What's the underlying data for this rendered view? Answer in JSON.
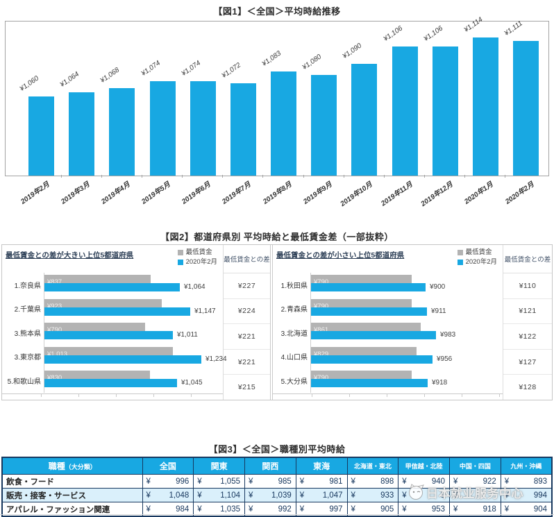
{
  "colors": {
    "accent_blue": "#18a8e2",
    "bar_gray": "#b3b3b3",
    "table_border_navy": "#17375e",
    "table_alt_row": "#daf0fb",
    "panel_border": "#c6c6c6"
  },
  "figure2_title": "【図2】都道府県別 平均時給と最低賃金差（一部抜粋）",
  "watermark": {
    "text": "日本就业服务中心",
    "logo": "cat-face-icon"
  },
  "chart_data": [
    {
      "id": "fig1",
      "type": "bar",
      "title": "【図1】＜全国＞平均時給推移",
      "categories": [
        "2019年2月",
        "2019年3月",
        "2019年4月",
        "2019年5月",
        "2019年6月",
        "2019年7月",
        "2019年8月",
        "2019年9月",
        "2019年10月",
        "2019年11月",
        "2019年12月",
        "2020年1月",
        "2020年2月"
      ],
      "values": [
        1060,
        1064,
        1068,
        1074,
        1074,
        1072,
        1083,
        1080,
        1090,
        1106,
        1106,
        1114,
        1111
      ],
      "data_labels": [
        "¥1,060",
        "¥1,064",
        "¥1,068",
        "¥1,074",
        "¥1,074",
        "¥1,072",
        "¥1,083",
        "¥1,080",
        "¥1,090",
        "¥1,106",
        "¥1,106",
        "¥1,114",
        "¥1,111"
      ],
      "bar_color": "#18a8e2",
      "xlabel": "",
      "ylabel": "",
      "ylim": [
        990,
        1140
      ],
      "grid": false,
      "legend": "none",
      "label_style": "rotated-italic"
    },
    {
      "id": "fig2_left",
      "type": "bar",
      "orientation": "horizontal",
      "title": "最低賃金との差が大きい上位5都道府県",
      "categories": [
        "1.奈良県",
        "2.千葉県",
        "3.熊本県",
        "3.東京都",
        "5.和歌山県"
      ],
      "series": [
        {
          "name": "最低賃金",
          "color": "#b3b3b3",
          "values": [
            837,
            923,
            790,
            1013,
            830
          ],
          "labels": [
            "¥837",
            "¥923",
            "¥790",
            "¥1,013",
            "¥830"
          ]
        },
        {
          "name": "2020年2月",
          "color": "#18a8e2",
          "values": [
            1064,
            1147,
            1011,
            1234,
            1045
          ],
          "labels": [
            "¥1,064",
            "¥1,147",
            "¥1,011",
            "¥1,234",
            "¥1,045"
          ]
        }
      ],
      "diff_column": {
        "header": "最低賃金との差",
        "values": [
          "¥227",
          "¥224",
          "¥221",
          "¥221",
          "¥215"
        ]
      },
      "legend_position": "top-right",
      "xlim": [
        0,
        1350
      ],
      "grid": false
    },
    {
      "id": "fig2_right",
      "type": "bar",
      "orientation": "horizontal",
      "title": "最低賃金との差が小さい上位5都道府県",
      "categories": [
        "1.秋田県",
        "2.青森県",
        "3.北海道",
        "4.山口県",
        "5.大分県"
      ],
      "series": [
        {
          "name": "最低賃金",
          "color": "#b3b3b3",
          "values": [
            790,
            790,
            861,
            829,
            790
          ],
          "labels": [
            "¥790",
            "¥790",
            "¥861",
            "¥829",
            "¥790"
          ]
        },
        {
          "name": "2020年2月",
          "color": "#18a8e2",
          "values": [
            900,
            911,
            983,
            956,
            918
          ],
          "labels": [
            "¥900",
            "¥911",
            "¥983",
            "¥956",
            "¥918"
          ]
        }
      ],
      "diff_column": {
        "header": "最低賃金との差",
        "values": [
          "¥110",
          "¥121",
          "¥122",
          "¥127",
          "¥128"
        ]
      },
      "legend_position": "top-right",
      "xlim": [
        0,
        1350
      ],
      "grid": false
    },
    {
      "id": "fig3",
      "type": "table",
      "title": "【図3】＜全国＞職種別平均時給",
      "currency_symbol": "¥",
      "columns": [
        {
          "label": "職種",
          "sublabel": "（大分類）"
        },
        {
          "label": "全国"
        },
        {
          "label": "関東"
        },
        {
          "label": "関西"
        },
        {
          "label": "東海"
        },
        {
          "label": "北海道・東北",
          "small": true
        },
        {
          "label": "甲信越・北陸",
          "small": true
        },
        {
          "label": "中国・四国",
          "small": true
        },
        {
          "label": "九州・沖縄",
          "small": true
        }
      ],
      "rows": [
        {
          "label": "飲食・フード",
          "values": [
            "996",
            "1,055",
            "985",
            "981",
            "898",
            "940",
            "922",
            "893"
          ]
        },
        {
          "label": "販売・接客・サービス",
          "values": [
            "1,048",
            "1,104",
            "1,039",
            "1,047",
            "933",
            "9",
            "",
            "994"
          ]
        },
        {
          "label": "アパレル・ファッション関連",
          "values": [
            "984",
            "1,035",
            "992",
            "997",
            "905",
            "953",
            "918",
            "904"
          ]
        }
      ]
    }
  ]
}
